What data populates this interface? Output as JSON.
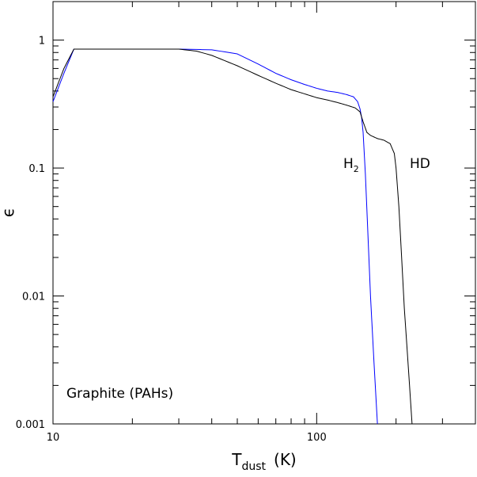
{
  "chart_data": {
    "type": "line",
    "title": "",
    "xlabel": "T",
    "xlabel_subscript": "dust",
    "xlabel_unit": "(K)",
    "ylabel": "ϵ",
    "xscale": "log",
    "yscale": "log",
    "xlim": [
      10,
      400
    ],
    "ylim": [
      0.001,
      2
    ],
    "grid": false,
    "x_ticks": [
      {
        "value": 10,
        "label": "10"
      },
      {
        "value": 100,
        "label": "100"
      }
    ],
    "y_ticks": [
      {
        "value": 1,
        "label": "1"
      },
      {
        "value": 0.1,
        "label": "0.1"
      },
      {
        "value": 0.01,
        "label": "0.01"
      },
      {
        "value": 0.001,
        "label": "0.001"
      }
    ],
    "annotation": "Graphite (PAHs)",
    "series": [
      {
        "name": "H",
        "name_subscript": "2",
        "color": "#0000ff",
        "x": [
          10,
          11,
          12,
          20,
          30,
          40,
          50,
          60,
          70,
          80,
          90,
          100,
          110,
          120,
          130,
          138,
          143,
          146,
          148,
          150,
          153,
          156,
          160,
          165,
          170
        ],
        "y": [
          0.33,
          0.55,
          0.85,
          0.85,
          0.85,
          0.84,
          0.78,
          0.65,
          0.55,
          0.49,
          0.45,
          0.42,
          0.4,
          0.39,
          0.375,
          0.36,
          0.33,
          0.29,
          0.25,
          0.19,
          0.09,
          0.035,
          0.01,
          0.003,
          0.001
        ]
      },
      {
        "name": "HD",
        "color": "#000000",
        "x": [
          10,
          11,
          12,
          20,
          30,
          35,
          40,
          50,
          60,
          70,
          80,
          90,
          100,
          110,
          120,
          130,
          140,
          146,
          150,
          155,
          160,
          170,
          180,
          190,
          197,
          200,
          205,
          210,
          215,
          220,
          225,
          230
        ],
        "y": [
          0.36,
          0.6,
          0.85,
          0.85,
          0.85,
          0.82,
          0.76,
          0.63,
          0.53,
          0.46,
          0.41,
          0.38,
          0.355,
          0.34,
          0.325,
          0.31,
          0.295,
          0.275,
          0.23,
          0.19,
          0.18,
          0.17,
          0.165,
          0.155,
          0.13,
          0.1,
          0.05,
          0.02,
          0.008,
          0.004,
          0.002,
          0.001
        ]
      }
    ]
  }
}
